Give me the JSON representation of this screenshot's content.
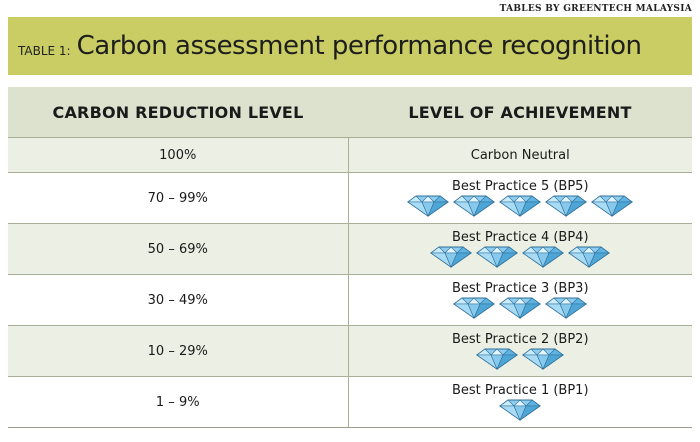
{
  "credit": "TABLES BY GREENTECH MALAYSIA",
  "title": {
    "prefix": "TABLE 1:",
    "main": "Carbon assessment performance recognition"
  },
  "table": {
    "headers": [
      "CARBON REDUCTION LEVEL",
      "LEVEL OF ACHIEVEMENT"
    ],
    "rows": [
      {
        "reduction": "100%",
        "achievement": "Carbon Neutral",
        "diamonds": 0
      },
      {
        "reduction": "70 – 99%",
        "achievement": "Best Practice 5 (BP5)",
        "diamonds": 5
      },
      {
        "reduction": "50 – 69%",
        "achievement": "Best Practice 4 (BP4)",
        "diamonds": 4
      },
      {
        "reduction": "30 – 49%",
        "achievement": "Best Practice 3 (BP3)",
        "diamonds": 3
      },
      {
        "reduction": "10 – 29%",
        "achievement": "Best Practice 2 (BP2)",
        "diamonds": 2
      },
      {
        "reduction": "1 – 9%",
        "achievement": "Best Practice 1 (BP1)",
        "diamonds": 1
      }
    ]
  },
  "colors": {
    "title_band": "#c9cd63",
    "header_band": "#dde2cf",
    "alt_row": "#ecefe3",
    "diamond": "#8ecdf0"
  },
  "icon": "diamond-icon"
}
